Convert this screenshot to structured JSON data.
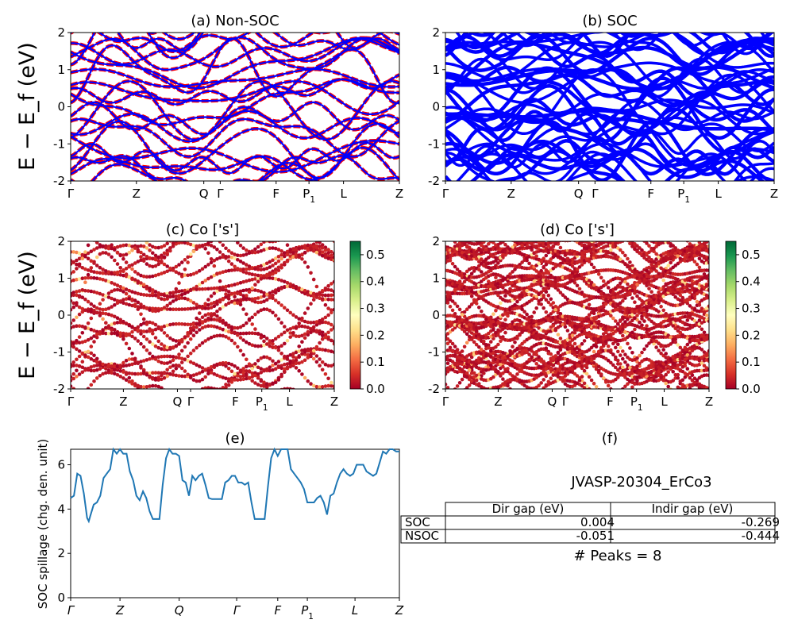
{
  "figure": {
    "ylabel_main": "E − E_f (eV)",
    "colors": {
      "nonsoc_bands": "#ff0000",
      "soc_bands": "#0000ff",
      "bands_overlay": "#0000ff",
      "spillage_line": "#1f77b4",
      "projection_map": [
        "#a50026",
        "#d73027",
        "#f46d43",
        "#fdae61",
        "#fee08b",
        "#ffffbf",
        "#d9ef8b",
        "#a6d96a",
        "#66bd63",
        "#1a9850",
        "#006837"
      ]
    }
  },
  "panels": {
    "a": {
      "title": "(a) Non-SOC"
    },
    "b": {
      "title": "(b) SOC"
    },
    "c": {
      "title": "(c)  Co ['s']"
    },
    "d": {
      "title": "(d) Co ['s']"
    },
    "e": {
      "title": "(e)",
      "ylabel": "SOC spillage (chg. den. unit)"
    },
    "f": {
      "title": "(f)"
    }
  },
  "kpath": {
    "band_labels": [
      "Γ",
      "Z",
      "Q",
      "Γ",
      "F",
      "P_1",
      "L",
      "Z"
    ],
    "band_positions": [
      0,
      0.2,
      0.405,
      0.455,
      0.625,
      0.725,
      0.83,
      1.0
    ],
    "spill_labels": [
      "Γ",
      "Z",
      "Q",
      "Γ",
      "F",
      "P_1",
      "L",
      "Z"
    ],
    "spill_positions": [
      0,
      0.15,
      0.33,
      0.505,
      0.63,
      0.72,
      0.865,
      1.0
    ]
  },
  "chart_data": [
    {
      "type": "line",
      "title": "(a) Non-SOC",
      "ylabel": "E − E_f (eV)",
      "ylim": [
        -2,
        2
      ],
      "yticks": [
        -2,
        -1,
        0,
        1,
        2
      ],
      "xticks": [
        "Γ",
        "Z",
        "Q",
        "Γ",
        "F",
        "P_1",
        "L",
        "Z"
      ],
      "series": [
        {
          "x": [
            0,
            0.2,
            0.405,
            0.455,
            0.625,
            0.725,
            0.83,
            1.0
          ],
          "y": [
            1.5,
            0.9,
            1.3,
            1.6,
            1.0,
            1.4,
            0.8,
            1.2
          ]
        },
        {
          "x": [
            0,
            0.2,
            0.405,
            0.455,
            0.625,
            0.725,
            0.83,
            1.0
          ],
          "y": [
            0.5,
            0.7,
            0.4,
            0.6,
            0.3,
            0.6,
            0.5,
            0.6
          ]
        },
        {
          "x": [
            0,
            0.2,
            0.405,
            0.455,
            0.625,
            0.725,
            0.83,
            1.0
          ],
          "y": [
            -0.3,
            -0.1,
            -0.4,
            -0.2,
            -0.5,
            -0.2,
            -0.3,
            -0.2
          ]
        },
        {
          "x": [
            0,
            0.2,
            0.405,
            0.455,
            0.625,
            0.725,
            0.83,
            1.0
          ],
          "y": [
            -1.0,
            -0.8,
            -1.2,
            -0.9,
            -1.1,
            -0.7,
            -1.0,
            -0.9
          ]
        },
        {
          "x": [
            0,
            0.2,
            0.405,
            0.455,
            0.625,
            0.725,
            0.83,
            1.0
          ],
          "y": [
            -1.6,
            -1.4,
            -1.8,
            -1.5,
            -1.7,
            -1.3,
            -1.6,
            -1.5
          ]
        }
      ]
    },
    {
      "type": "line",
      "title": "(b) SOC",
      "ylim": [
        -2,
        2
      ],
      "yticks": [
        -2,
        -1,
        0,
        1,
        2
      ],
      "xticks": [
        "Γ",
        "Z",
        "Q",
        "Γ",
        "F",
        "P_1",
        "L",
        "Z"
      ],
      "series": [
        {
          "x": [
            0,
            0.2,
            0.405,
            0.455,
            0.625,
            0.725,
            0.83,
            1.0
          ],
          "y": [
            1.6,
            1.0,
            1.4,
            1.7,
            1.1,
            1.5,
            0.9,
            1.3
          ]
        },
        {
          "x": [
            0,
            0.2,
            0.405,
            0.455,
            0.625,
            0.725,
            0.83,
            1.0
          ],
          "y": [
            0.6,
            0.8,
            0.5,
            0.7,
            0.4,
            0.7,
            0.6,
            0.7
          ]
        },
        {
          "x": [
            0,
            0.2,
            0.405,
            0.455,
            0.625,
            0.725,
            0.83,
            1.0
          ],
          "y": [
            -0.2,
            0.0,
            -0.3,
            -0.1,
            -0.4,
            -0.1,
            -0.2,
            -0.1
          ]
        },
        {
          "x": [
            0,
            0.2,
            0.405,
            0.455,
            0.625,
            0.725,
            0.83,
            1.0
          ],
          "y": [
            -0.9,
            -0.7,
            -1.1,
            -0.8,
            -1.0,
            -0.6,
            -0.9,
            -0.8
          ]
        },
        {
          "x": [
            0,
            0.2,
            0.405,
            0.455,
            0.625,
            0.725,
            0.83,
            1.0
          ],
          "y": [
            -1.5,
            -1.3,
            -1.7,
            -1.4,
            -1.6,
            -1.2,
            -1.5,
            -1.4
          ]
        }
      ]
    },
    {
      "type": "scatter",
      "title": "(c)  Co ['s']",
      "ylim": [
        -2,
        2
      ],
      "colorbar": {
        "range": [
          0.0,
          0.55
        ],
        "ticks": [
          "0.0",
          "0.1",
          "0.2",
          "0.3",
          "0.4",
          "0.5"
        ]
      },
      "xticks": [
        "Γ",
        "Z",
        "Q",
        "Γ",
        "F",
        "P_1",
        "L",
        "Z"
      ]
    },
    {
      "type": "scatter",
      "title": "(d) Co ['s']",
      "ylim": [
        -2,
        2
      ],
      "colorbar": {
        "range": [
          0.0,
          0.55
        ],
        "ticks": [
          "0.0",
          "0.1",
          "0.2",
          "0.3",
          "0.4",
          "0.5"
        ]
      },
      "xticks": [
        "Γ",
        "Z",
        "Q",
        "Γ",
        "F",
        "P_1",
        "L",
        "Z"
      ]
    },
    {
      "type": "line",
      "title": "(e)",
      "ylabel": "SOC spillage (chg. den. unit)",
      "ylim": [
        0,
        6.7
      ],
      "yticks": [
        0,
        2,
        4,
        6
      ],
      "xticks": [
        "Γ",
        "Z",
        "Q",
        "Γ",
        "F",
        "P_1",
        "L",
        "Z"
      ],
      "series": [
        {
          "x": [
            0.0,
            0.01,
            0.02,
            0.03,
            0.04,
            0.05,
            0.055,
            0.06,
            0.07,
            0.08,
            0.09,
            0.1,
            0.11,
            0.12,
            0.13,
            0.14,
            0.15,
            0.16,
            0.17,
            0.18,
            0.19,
            0.2,
            0.21,
            0.22,
            0.23,
            0.24,
            0.25,
            0.26,
            0.27,
            0.28,
            0.29,
            0.3,
            0.31,
            0.32,
            0.33,
            0.34,
            0.35,
            0.36,
            0.37,
            0.38,
            0.39,
            0.4,
            0.41,
            0.42,
            0.43,
            0.44,
            0.45,
            0.46,
            0.47,
            0.48,
            0.49,
            0.5,
            0.51,
            0.52,
            0.53,
            0.54,
            0.55,
            0.56,
            0.57,
            0.58,
            0.59,
            0.6,
            0.61,
            0.62,
            0.63,
            0.64,
            0.65,
            0.66,
            0.67,
            0.68,
            0.69,
            0.7,
            0.71,
            0.72,
            0.73,
            0.74,
            0.75,
            0.76,
            0.77,
            0.78,
            0.79,
            0.8,
            0.81,
            0.82,
            0.83,
            0.84,
            0.85,
            0.86,
            0.87,
            0.88,
            0.89,
            0.9,
            0.91,
            0.92,
            0.93,
            0.94,
            0.95,
            0.96,
            0.97,
            0.98,
            0.99,
            1.0
          ],
          "y": [
            4.5,
            4.6,
            5.6,
            5.5,
            4.7,
            3.6,
            3.45,
            3.7,
            4.2,
            4.3,
            4.6,
            5.4,
            5.6,
            5.8,
            6.7,
            6.5,
            6.7,
            6.5,
            6.5,
            5.7,
            5.3,
            4.6,
            4.4,
            4.8,
            4.5,
            3.9,
            3.55,
            3.55,
            3.55,
            5.1,
            6.3,
            6.7,
            6.5,
            6.5,
            6.4,
            5.3,
            5.2,
            4.6,
            5.5,
            5.3,
            5.5,
            5.6,
            5.1,
            4.5,
            4.45,
            4.45,
            4.45,
            4.45,
            5.2,
            5.3,
            5.5,
            5.5,
            5.2,
            5.2,
            5.1,
            5.2,
            4.3,
            3.55,
            3.55,
            3.55,
            3.55,
            5.0,
            6.3,
            6.7,
            6.4,
            6.7,
            6.7,
            6.7,
            5.8,
            5.6,
            5.4,
            5.2,
            4.9,
            4.3,
            4.3,
            4.3,
            4.5,
            4.6,
            4.3,
            3.75,
            4.6,
            4.7,
            5.2,
            5.6,
            5.8,
            5.6,
            5.5,
            5.6,
            6.0,
            6.0,
            6.0,
            5.7,
            5.6,
            5.5,
            5.6,
            6.1,
            6.6,
            6.5,
            6.7,
            6.7,
            6.6,
            6.6
          ]
        }
      ]
    },
    {
      "type": "table",
      "title": "(f)",
      "caption": "JVASP-20304_ErCo3",
      "columns": [
        "Dir gap (eV)",
        "Indir gap (eV)"
      ],
      "rows": [
        {
          "label": "SOC",
          "values": [
            "0.004",
            "-0.269"
          ]
        },
        {
          "label": "NSOC",
          "values": [
            "-0.051",
            "-0.444"
          ]
        }
      ],
      "footer": "# Peaks = 8"
    }
  ]
}
